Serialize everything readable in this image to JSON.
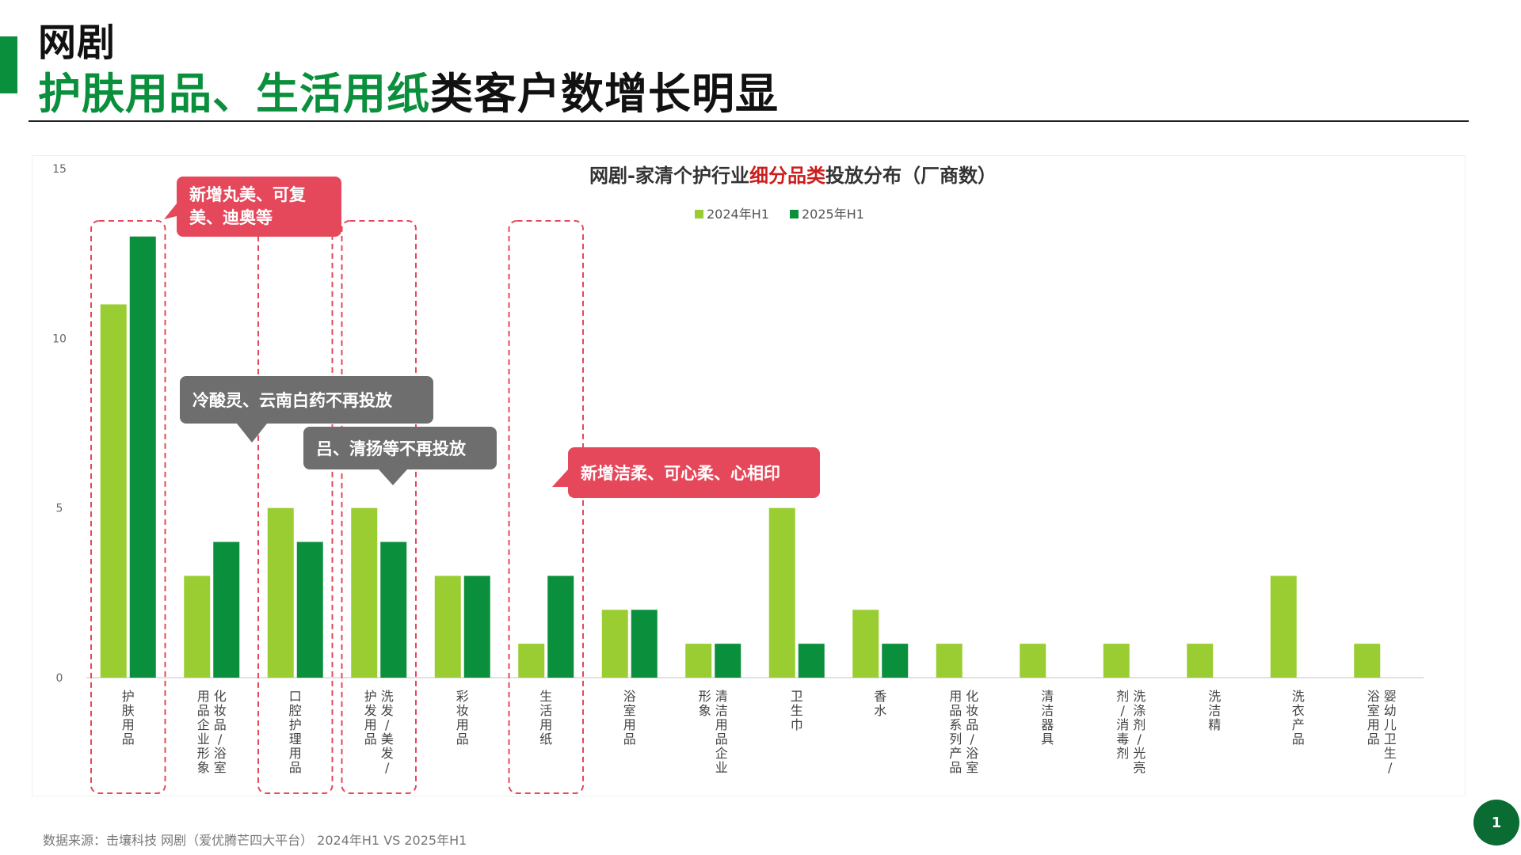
{
  "page": {
    "title_line1": "网剧",
    "title_line2_highlight": "护肤用品、生活用纸",
    "title_line2_rest": "类客户数增长明显",
    "footnote": "数据来源：击壤科技 网剧（爱优腾芒四大平台） 2024年H1 VS 2025年H1",
    "page_number": "1",
    "colors": {
      "brand_green": "#0a8f3c",
      "light_green": "#9acd32",
      "dark_green": "#0a8f3c",
      "callout_red": "#e5485a",
      "callout_gray": "#6e6e6e",
      "title_red": "#cc1d1d"
    }
  },
  "chart_data": {
    "type": "bar",
    "title_prefix": "网剧-家清个护行业",
    "title_highlight": "细分品类",
    "title_suffix": "投放分布（厂商数）",
    "categories": [
      "护肤用品",
      "化妆品/浴室用品企业形象",
      "口腔护理用品",
      "洗发/美发/护发用品",
      "彩妆用品",
      "生活用纸",
      "浴室用品",
      "清洁用品企业形象",
      "卫生巾",
      "香水",
      "化妆品/浴室用品系列产品",
      "清洁器具",
      "洗涤剂/光亮剂/消毒剂",
      "洗洁精",
      "洗衣产品",
      "婴幼儿卫生/浴室用品"
    ],
    "series": [
      {
        "name": "2024年H1",
        "color": "#9acd32",
        "values": [
          11,
          3,
          5,
          5,
          3,
          1,
          2,
          1,
          5,
          2,
          1,
          1,
          1,
          1,
          3,
          1
        ]
      },
      {
        "name": "2025年H1",
        "color": "#0a8f3c",
        "values": [
          13,
          4,
          4,
          4,
          3,
          3,
          2,
          1,
          1,
          1,
          0,
          0,
          0,
          0,
          0,
          0
        ]
      }
    ],
    "ylim": [
      0,
      15
    ],
    "yticks": [
      0,
      5,
      10,
      15
    ],
    "legend_position": "top-center",
    "grid": false,
    "highlighted_categories": [
      0,
      2,
      3,
      5
    ],
    "annotations": [
      {
        "text": "新增丸美、可复美、迪奥等",
        "style": "red",
        "target_category": 0
      },
      {
        "text": "冷酸灵、云南白药不再投放",
        "style": "gray",
        "target_category": 2
      },
      {
        "text": "吕、清扬等不再投放",
        "style": "gray",
        "target_category": 3
      },
      {
        "text": "新增洁柔、可心柔、心相印",
        "style": "red",
        "target_category": 5
      }
    ]
  }
}
